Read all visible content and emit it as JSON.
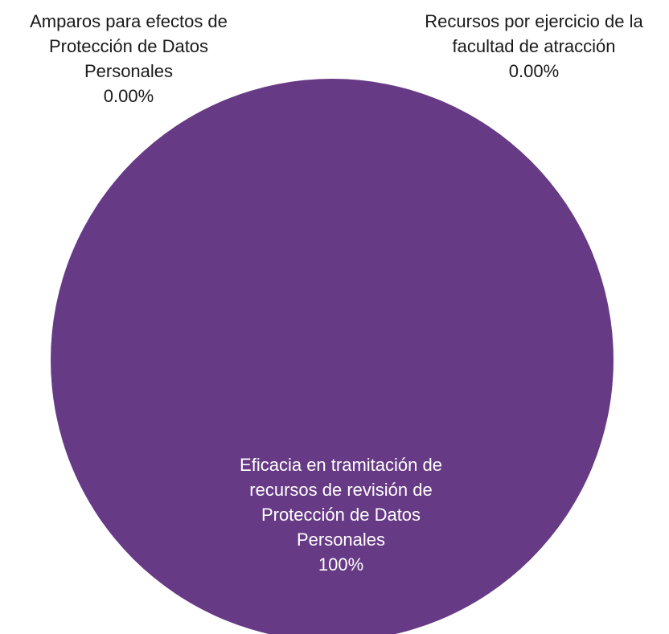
{
  "chart_data": {
    "type": "pie",
    "title": "",
    "slices": [
      {
        "lines": [
          "Amparos para efectos de",
          "Protección de Datos",
          "Personales",
          "0.00%"
        ],
        "value": 0,
        "color": "#673a85",
        "label_color": "#1a1a1a"
      },
      {
        "lines": [
          "Recursos por ejercicio de la",
          "facultad de atracción",
          "0.00%"
        ],
        "value": 0,
        "color": "#673a85",
        "label_color": "#1a1a1a"
      },
      {
        "lines": [
          "Eficacia en tramitación de",
          "recursos de revisión de",
          "Protección de Datos",
          "Personales",
          "100%"
        ],
        "value": 100,
        "color": "#673a85",
        "label_color": "#ffffff"
      }
    ],
    "legend": "none"
  }
}
